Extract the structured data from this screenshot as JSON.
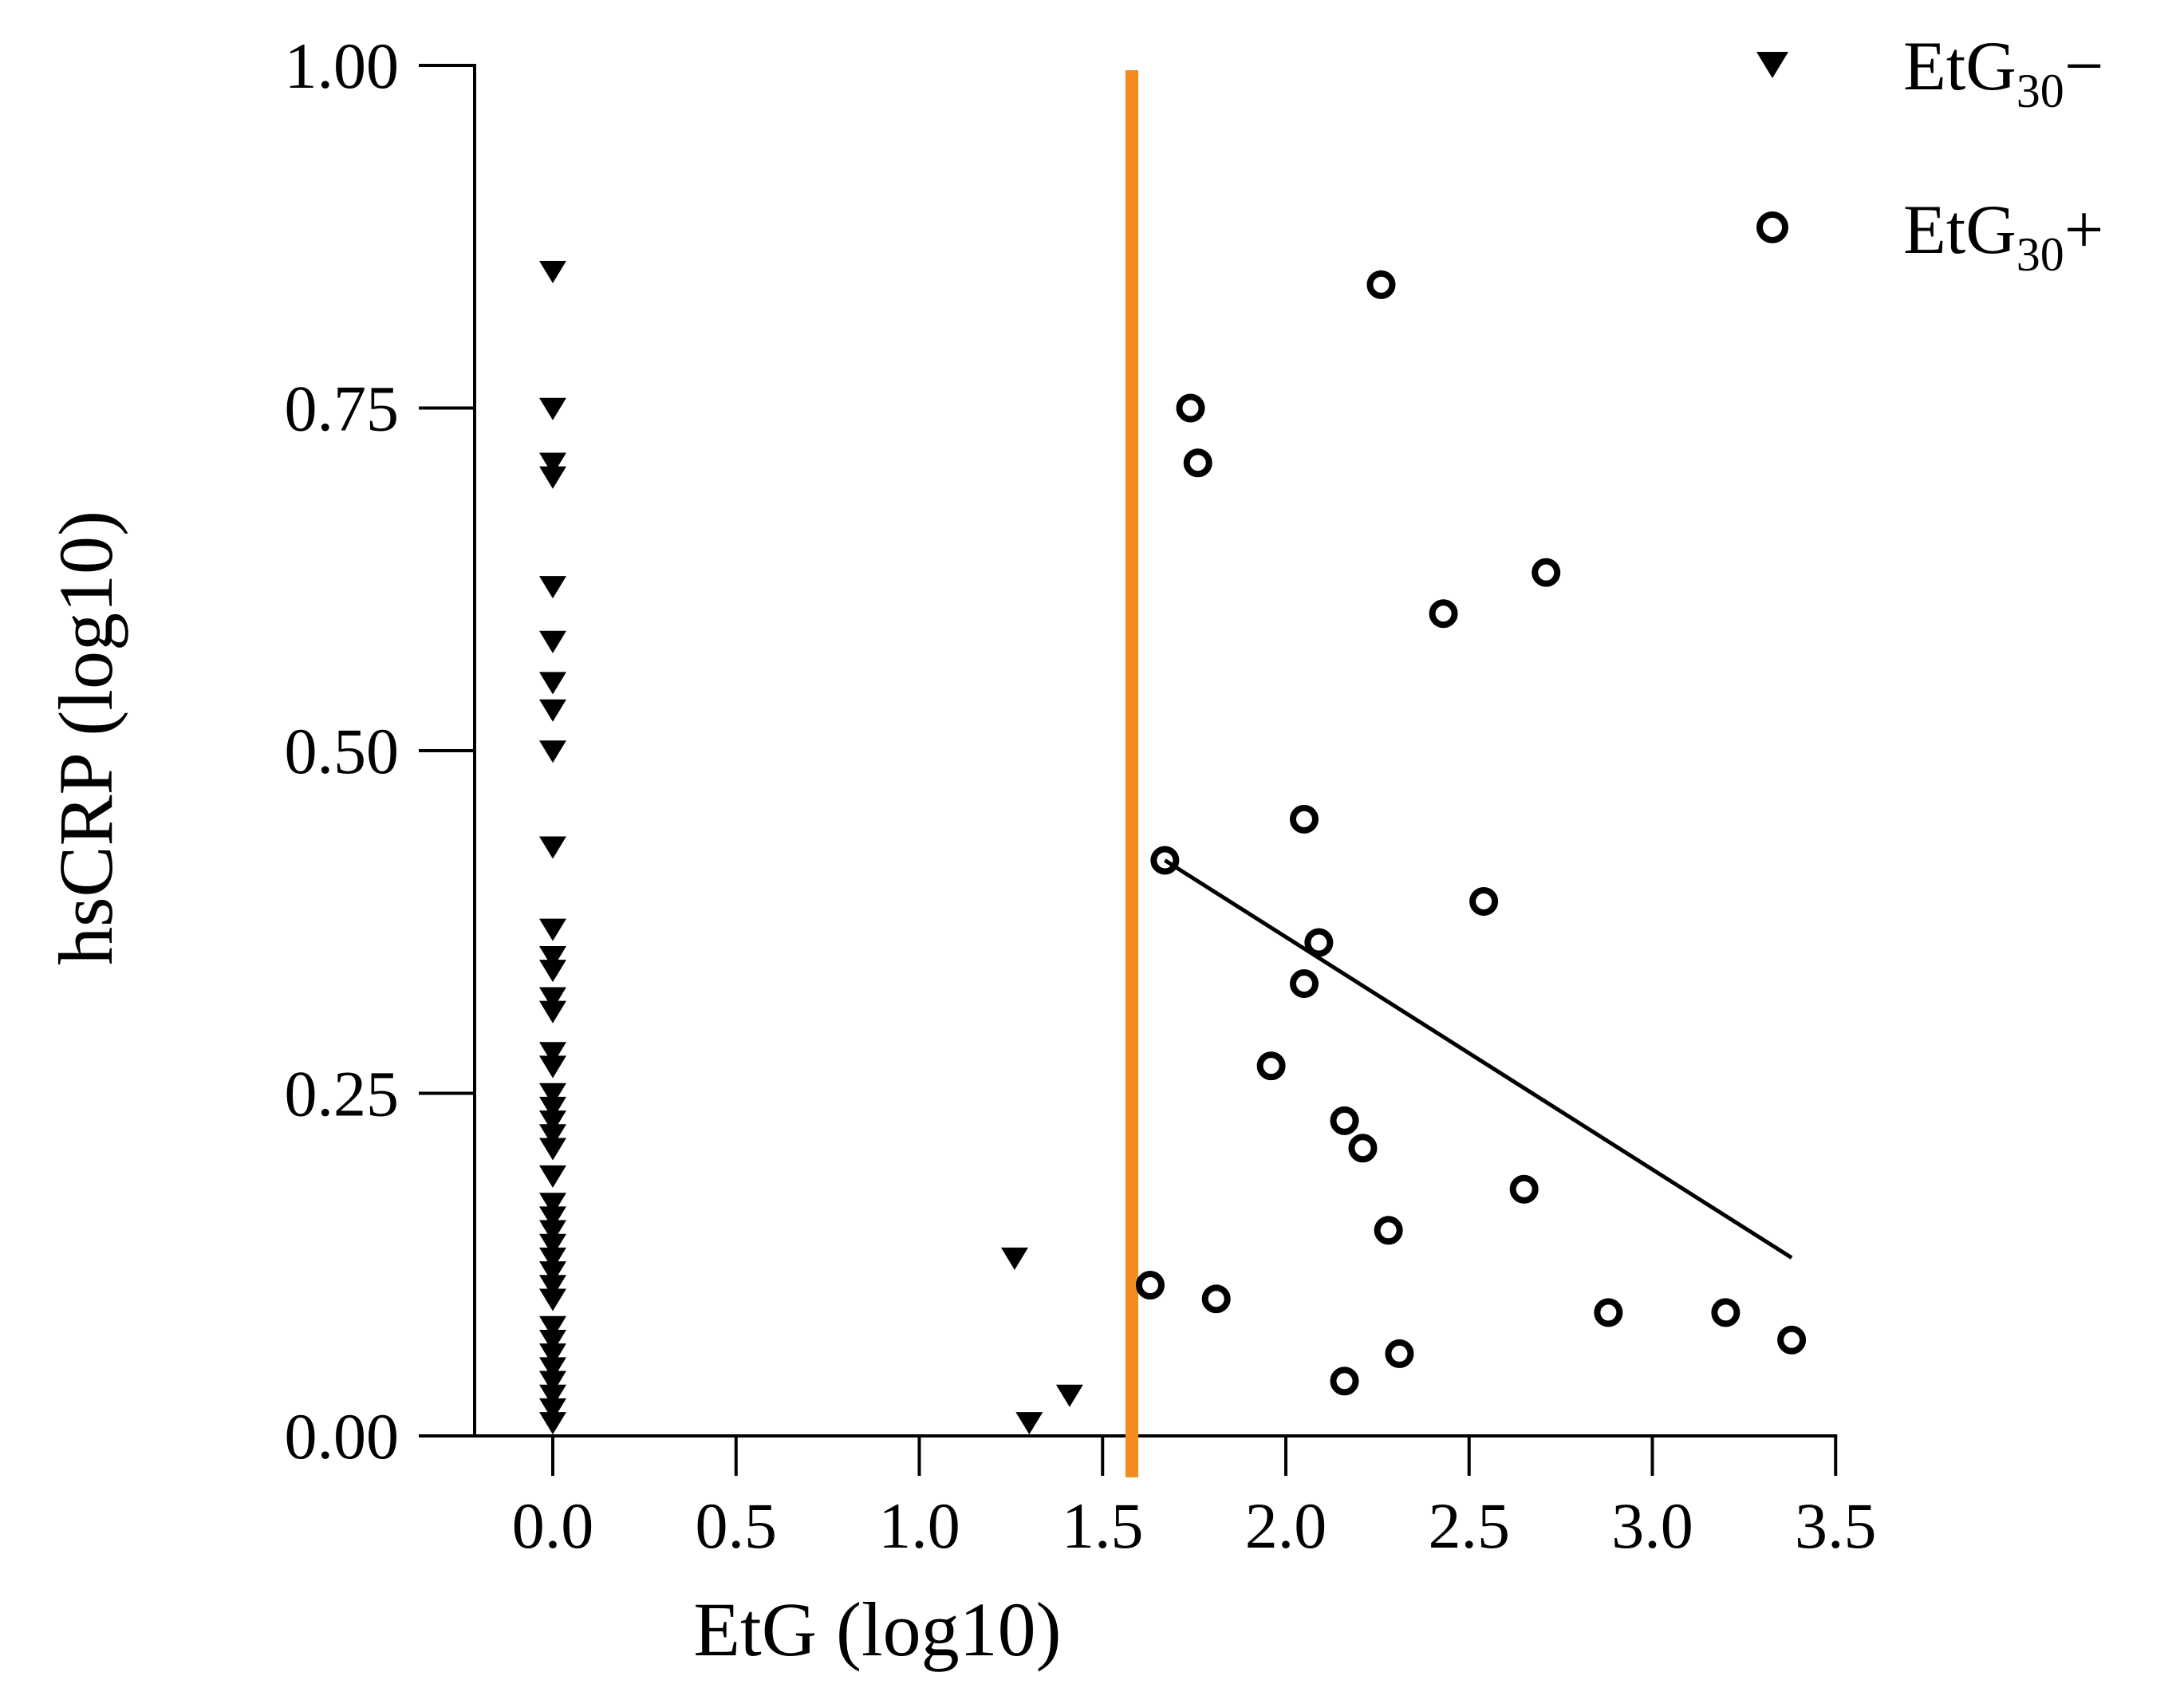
{
  "chart_data": {
    "type": "scatter",
    "xlabel": "EtG (log10)",
    "ylabel": "hsCRP (log10)",
    "xlim": [
      -0.2,
      3.5
    ],
    "ylim": [
      0,
      1
    ],
    "xticks": [
      "0.0",
      "0.5",
      "1.0",
      "1.5",
      "2.0",
      "2.5",
      "3.0",
      "3.5"
    ],
    "yticks": [
      "0.00",
      "0.25",
      "0.50",
      "0.75",
      "1.00"
    ],
    "grid": false,
    "legend_position": "top-right",
    "threshold": {
      "x": 1.58,
      "color": "#F28C1E"
    },
    "series": [
      {
        "name_main": "EtG",
        "name_sub": "30",
        "name_suffix": "−",
        "marker": "triangle-down",
        "color": "#000000",
        "points": [
          [
            0,
            0.85
          ],
          [
            0,
            0.75
          ],
          [
            0,
            0.71
          ],
          [
            0,
            0.7
          ],
          [
            0,
            0.62
          ],
          [
            0,
            0.58
          ],
          [
            0,
            0.55
          ],
          [
            0,
            0.53
          ],
          [
            0,
            0.5
          ],
          [
            0,
            0.43
          ],
          [
            0,
            0.37
          ],
          [
            0,
            0.35
          ],
          [
            0,
            0.34
          ],
          [
            0,
            0.32
          ],
          [
            0,
            0.31
          ],
          [
            0,
            0.28
          ],
          [
            0,
            0.27
          ],
          [
            0,
            0.25
          ],
          [
            0,
            0.24
          ],
          [
            0,
            0.23
          ],
          [
            0,
            0.22
          ],
          [
            0,
            0.21
          ],
          [
            0,
            0.19
          ],
          [
            0,
            0.17
          ],
          [
            0,
            0.16
          ],
          [
            0,
            0.15
          ],
          [
            0,
            0.14
          ],
          [
            0,
            0.13
          ],
          [
            0,
            0.12
          ],
          [
            0,
            0.11
          ],
          [
            0,
            0.1
          ],
          [
            0,
            0.08
          ],
          [
            0,
            0.07
          ],
          [
            0,
            0.06
          ],
          [
            0,
            0.05
          ],
          [
            0,
            0.04
          ],
          [
            0,
            0.03
          ],
          [
            0,
            0.02
          ],
          [
            0,
            0.01
          ],
          [
            1.26,
            0.13
          ],
          [
            1.3,
            0.01
          ],
          [
            1.41,
            0.03
          ]
        ]
      },
      {
        "name_main": "EtG",
        "name_sub": "30",
        "name_suffix": "+",
        "marker": "circle-open",
        "color": "#000000",
        "points": [
          [
            2.26,
            0.84
          ],
          [
            1.74,
            0.75
          ],
          [
            1.76,
            0.71
          ],
          [
            2.71,
            0.63
          ],
          [
            2.43,
            0.6
          ],
          [
            2.05,
            0.45
          ],
          [
            1.67,
            0.42
          ],
          [
            2.54,
            0.39
          ],
          [
            2.09,
            0.36
          ],
          [
            2.05,
            0.33
          ],
          [
            1.96,
            0.27
          ],
          [
            2.16,
            0.23
          ],
          [
            2.21,
            0.21
          ],
          [
            2.65,
            0.18
          ],
          [
            2.28,
            0.15
          ],
          [
            1.63,
            0.11
          ],
          [
            1.81,
            0.1
          ],
          [
            2.88,
            0.09
          ],
          [
            3.2,
            0.09
          ],
          [
            3.38,
            0.07
          ],
          [
            2.31,
            0.06
          ],
          [
            2.16,
            0.04
          ]
        ]
      }
    ],
    "regression_line": {
      "x": [
        1.67,
        3.38
      ],
      "y": [
        0.42,
        0.13
      ]
    }
  }
}
